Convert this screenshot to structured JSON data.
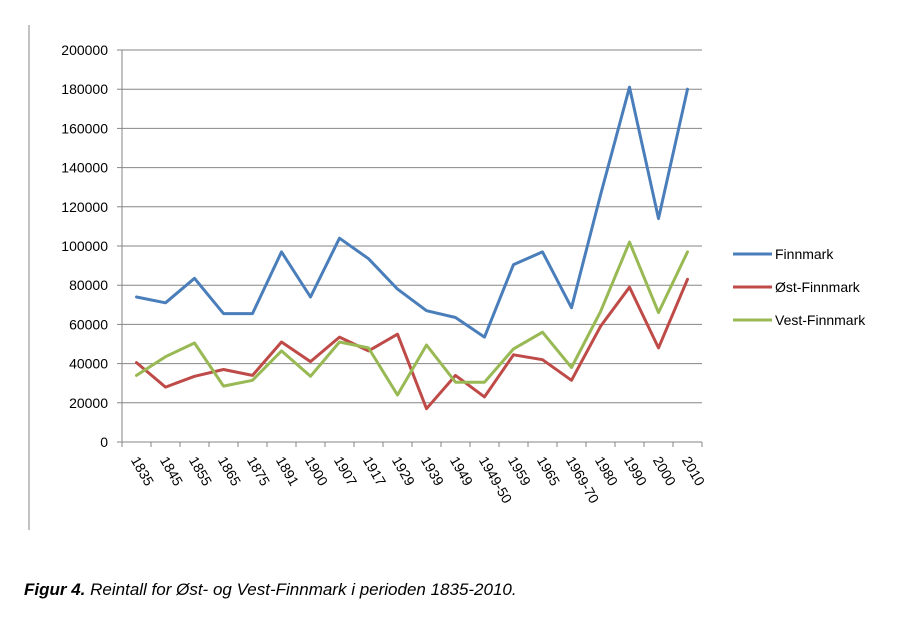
{
  "chart_data": {
    "type": "line",
    "categories": [
      "1835",
      "1845",
      "1855",
      "1865",
      "1875",
      "1891",
      "1900",
      "1907",
      "1917",
      "1929",
      "1939",
      "1949",
      "1949-50",
      "1959",
      "1965",
      "1969-70",
      "1980",
      "1990",
      "2000",
      "2010"
    ],
    "series": [
      {
        "name": "Finnmark",
        "color": "#4a7ebb",
        "values": [
          74000,
          71000,
          83500,
          65500,
          65500,
          97000,
          74000,
          104000,
          93500,
          78000,
          67000,
          63500,
          53500,
          90500,
          97000,
          68500,
          126000,
          181000,
          114000,
          180000
        ]
      },
      {
        "name": "Øst-Finnmark",
        "color": "#be4b48",
        "values": [
          40500,
          28000,
          33500,
          37000,
          34000,
          51000,
          41000,
          53500,
          46500,
          55000,
          17000,
          34000,
          23000,
          44500,
          42000,
          31500,
          59000,
          79000,
          48000,
          83000
        ]
      },
      {
        "name": "Vest-Finnmark",
        "color": "#98b954",
        "values": [
          34000,
          43500,
          50500,
          28500,
          31500,
          46500,
          33500,
          51000,
          48000,
          24000,
          49500,
          30500,
          30500,
          47500,
          56000,
          38000,
          66500,
          102000,
          66000,
          97000
        ]
      }
    ],
    "y_ticks": [
      "200000",
      "180000",
      "160000",
      "140000",
      "120000",
      "100000",
      "80000",
      "60000",
      "40000",
      "20000",
      "0"
    ],
    "ylim": [
      0,
      200000
    ],
    "grid": true,
    "legend_position": "right"
  },
  "caption": {
    "label": "Figur 4.",
    "text": " Reintall for Øst- og Vest-Finnmark i perioden 1835-2010."
  }
}
